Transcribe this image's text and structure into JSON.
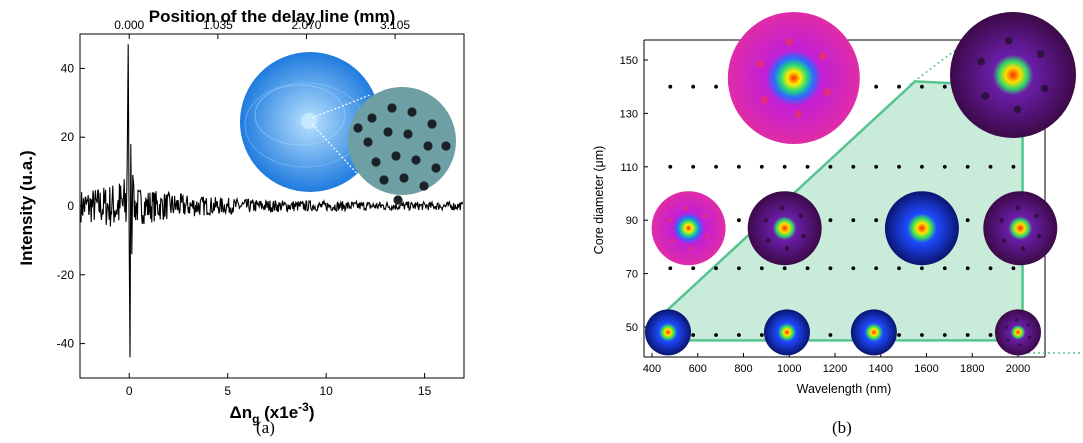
{
  "panels": {
    "a_label": "(a)",
    "b_label": "(b)"
  },
  "chart_data": [
    {
      "type": "line",
      "title": "Position of the delay line (mm)",
      "xlabel": "Δng (x1e-3)",
      "xlabel_main": "Δn",
      "xlabel_sub": "g",
      "xlabel_rest": " (x1e",
      "xlabel_sup": "-3",
      "xlabel_close": ")",
      "ylabel": "Intensity (u.a.)",
      "xlim": [
        -2.5,
        17
      ],
      "ylim": [
        -50,
        50
      ],
      "x_ticks": [
        "0",
        "5",
        "10",
        "15"
      ],
      "x_tick_values": [
        0,
        5,
        10,
        15
      ],
      "y_ticks": [
        "-40",
        "-20",
        "0",
        "20",
        "40"
      ],
      "y_tick_values": [
        -40,
        -20,
        0,
        20,
        40
      ],
      "top_ticks": [
        "0.000",
        "1.035",
        "2.070",
        "3.105"
      ],
      "top_tick_values": [
        0,
        4.5,
        9,
        13.5
      ],
      "peak": {
        "x": 0,
        "max": 47,
        "min": -44
      },
      "inset_fiber_holes": 18,
      "series": [
        {
          "values_summary": "interferogram centered at 0 with decaying oscillations",
          "x": [
            -2.5,
            -1.5,
            -0.8,
            -0.3,
            -0.1,
            0,
            0.05,
            0.1,
            0.3,
            0.8,
            2,
            4,
            6,
            8,
            10,
            12,
            15,
            17
          ],
          "y": [
            0,
            3,
            5,
            8,
            15,
            47,
            -44,
            20,
            6,
            4,
            2,
            1.5,
            1,
            0.8,
            0.6,
            0.4,
            0.3,
            0
          ]
        }
      ]
    },
    {
      "type": "scatter",
      "xlabel": "Wavelength (nm)",
      "ylabel": "Core diameter (μm)",
      "xlim": [
        400,
        2100
      ],
      "ylim": [
        40,
        155
      ],
      "x_ticks": [
        "400",
        "600",
        "800",
        "1000",
        "1200",
        "1400",
        "1600",
        "1800",
        "2000"
      ],
      "x_tick_values": [
        400,
        600,
        800,
        1000,
        1200,
        1400,
        1600,
        1800,
        2000
      ],
      "y_ticks": [
        "50",
        "70",
        "90",
        "110",
        "130",
        "150"
      ],
      "y_tick_values": [
        50,
        70,
        90,
        110,
        130,
        150
      ],
      "grid_x": [
        480,
        580,
        680,
        780,
        880,
        980,
        1080,
        1180,
        1280,
        1380,
        1480,
        1580,
        1680,
        1780,
        1880,
        1980
      ],
      "grid_y": [
        47,
        72,
        90,
        110,
        140
      ],
      "region": [
        [
          450,
          45
        ],
        [
          2020,
          45
        ],
        [
          2020,
          140
        ],
        [
          1550,
          142
        ],
        [
          450,
          55
        ]
      ],
      "mode_images": [
        {
          "wl": 470,
          "d": 48,
          "palette": "blue"
        },
        {
          "wl": 990,
          "d": 48,
          "palette": "blue"
        },
        {
          "wl": 1370,
          "d": 48,
          "palette": "blue"
        },
        {
          "wl": 2000,
          "d": 48,
          "palette": "purple"
        },
        {
          "wl": 560,
          "d": 87,
          "palette": "magenta"
        },
        {
          "wl": 980,
          "d": 87,
          "palette": "purple"
        },
        {
          "wl": 1580,
          "d": 87,
          "palette": "blue"
        },
        {
          "wl": 2010,
          "d": 87,
          "palette": "purple"
        },
        {
          "wl": 1020,
          "d": 145,
          "palette": "magenta"
        },
        {
          "wl": 1995,
          "d": 145,
          "palette": "purple"
        }
      ]
    }
  ]
}
